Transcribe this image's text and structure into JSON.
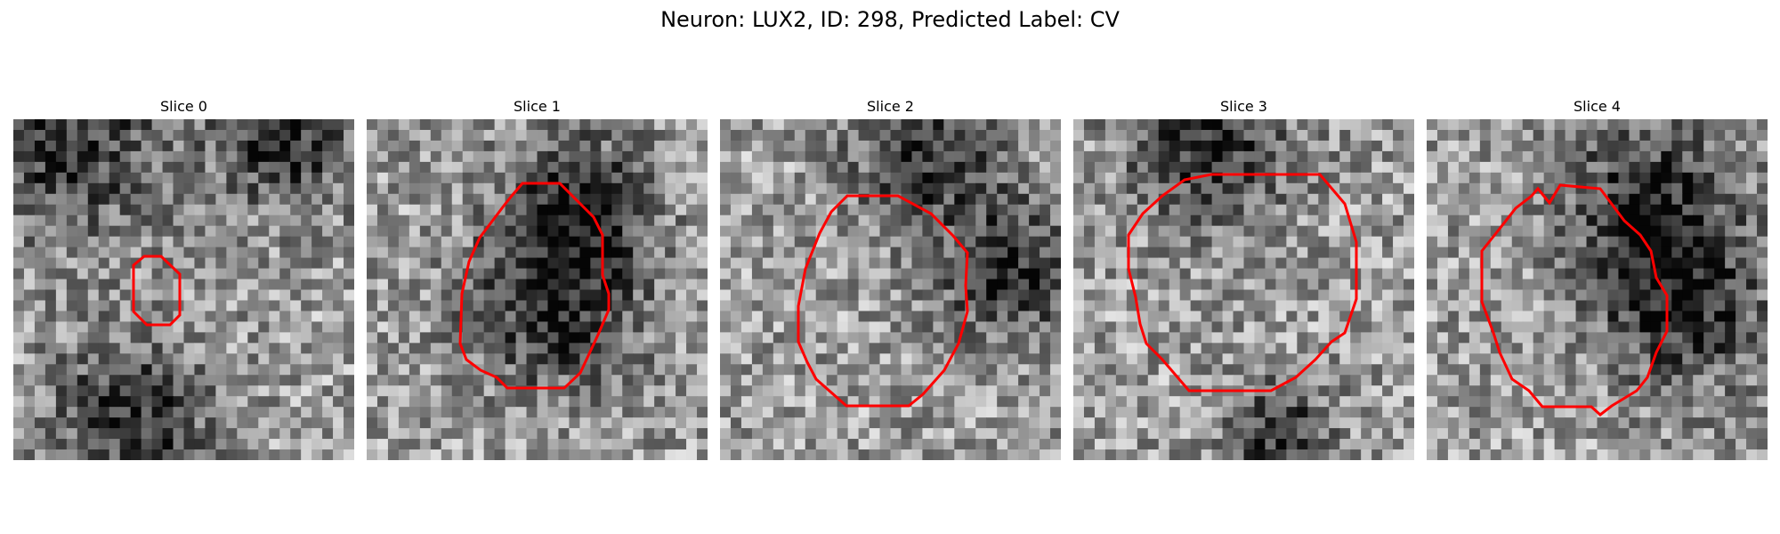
{
  "figure": {
    "title": "Neuron: LUX2, ID: 298, Predicted Label: CV"
  },
  "panels": [
    {
      "title": "Slice 0",
      "seed": 11,
      "center": [
        0.52,
        0.3
      ],
      "dark_blobs": [
        [
          0.35,
          0.88,
          0.28
        ],
        [
          0.15,
          0.05,
          0.35
        ],
        [
          0.8,
          0.05,
          0.25
        ]
      ],
      "outline_color": "#ff0000"
    },
    {
      "title": "Slice 1",
      "seed": 23,
      "center": [
        0.5,
        0.58
      ],
      "dark_blobs": [
        [
          0.62,
          0.25,
          0.25
        ],
        [
          0.55,
          0.55,
          0.3
        ]
      ],
      "outline_color": "#ff0000"
    },
    {
      "title": "Slice 2",
      "seed": 37,
      "center": [
        0.52,
        0.55
      ],
      "dark_blobs": [
        [
          0.6,
          0.1,
          0.25
        ],
        [
          0.85,
          0.45,
          0.25
        ]
      ],
      "outline_color": "#ff0000"
    },
    {
      "title": "Slice 3",
      "seed": 41,
      "center": [
        0.52,
        0.55
      ],
      "dark_blobs": [
        [
          0.4,
          0.08,
          0.28
        ],
        [
          0.6,
          0.92,
          0.18
        ]
      ],
      "outline_color": "#ff0000"
    },
    {
      "title": "Slice 4",
      "seed": 59,
      "center": [
        0.5,
        0.55
      ],
      "dark_blobs": [
        [
          0.65,
          0.25,
          0.3
        ],
        [
          0.75,
          0.55,
          0.28
        ]
      ],
      "outline_color": "#ff0000"
    }
  ]
}
